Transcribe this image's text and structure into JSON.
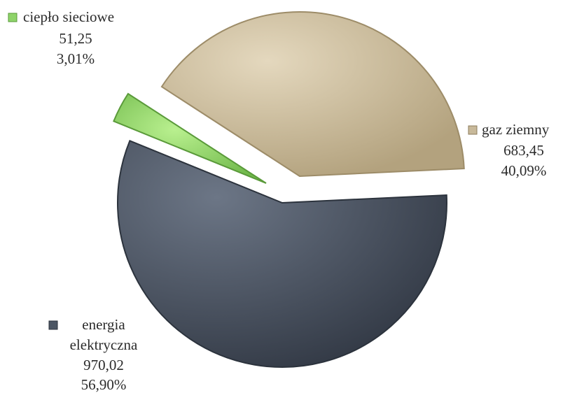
{
  "chart_data": {
    "type": "pie",
    "title": "",
    "exploded": true,
    "legend": "none",
    "slices": [
      {
        "name": "gaz ziemny",
        "value": "683,45",
        "percent": "40,09%",
        "value_num": 683.45,
        "percent_num": 40.09,
        "color": "#c8b99a",
        "label_lines": [
          "gaz ziemny"
        ]
      },
      {
        "name": "energia elektryczna",
        "value": "970,02",
        "percent": "56,90%",
        "value_num": 970.02,
        "percent_num": 56.9,
        "color": "#4b5563",
        "label_lines": [
          "energia",
          "elektryczna"
        ]
      },
      {
        "name": "ciepło sieciowe",
        "value": "51,25",
        "percent": "3,01%",
        "value_num": 51.25,
        "percent_num": 3.01,
        "color": "#8fd46a",
        "label_lines": [
          "ciepło sieciowe"
        ]
      }
    ]
  }
}
